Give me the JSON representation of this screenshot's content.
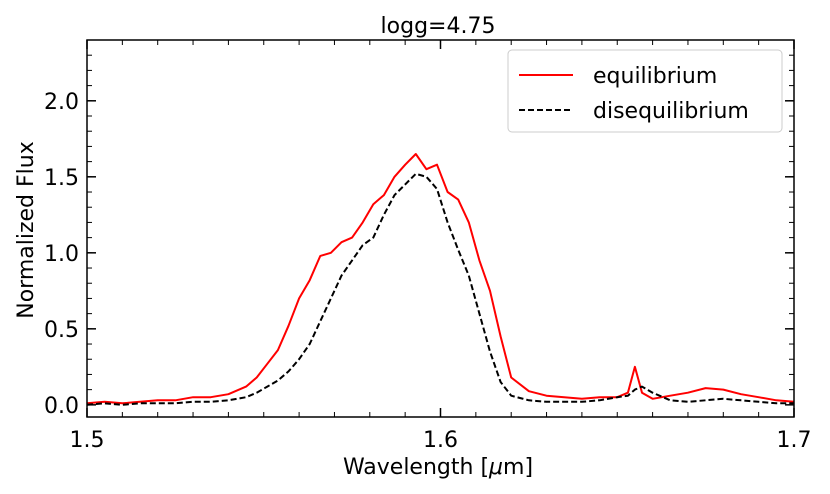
{
  "chart_data": {
    "type": "line",
    "title": "logg=4.75",
    "xlabel_prefix": "Wavelength [",
    "xlabel_mu": "μ",
    "xlabel_suffix": "m]",
    "ylabel": "Normalized Flux",
    "xlim": [
      1.5,
      1.7
    ],
    "ylim": [
      -0.08,
      2.4
    ],
    "x_ticks": [
      1.5,
      1.6,
      1.7
    ],
    "x_tick_labels": [
      "1.5",
      "1.6",
      "1.7"
    ],
    "y_ticks": [
      0.0,
      0.5,
      1.0,
      1.5,
      2.0
    ],
    "y_tick_labels": [
      "0.0",
      "0.5",
      "1.0",
      "1.5",
      "2.0"
    ],
    "legend_position": "top-right",
    "grid": false,
    "series": [
      {
        "name": "equilibrium",
        "color": "#ff0000",
        "dash": "solid",
        "x": [
          1.5,
          1.505,
          1.51,
          1.515,
          1.52,
          1.525,
          1.53,
          1.535,
          1.54,
          1.545,
          1.548,
          1.551,
          1.554,
          1.557,
          1.56,
          1.563,
          1.566,
          1.569,
          1.572,
          1.575,
          1.578,
          1.581,
          1.584,
          1.587,
          1.59,
          1.593,
          1.596,
          1.599,
          1.602,
          1.605,
          1.608,
          1.611,
          1.614,
          1.617,
          1.62,
          1.625,
          1.63,
          1.635,
          1.64,
          1.645,
          1.65,
          1.653,
          1.655,
          1.657,
          1.66,
          1.665,
          1.67,
          1.675,
          1.68,
          1.685,
          1.69,
          1.695,
          1.7
        ],
        "y": [
          0.01,
          0.02,
          0.01,
          0.02,
          0.03,
          0.03,
          0.05,
          0.05,
          0.07,
          0.12,
          0.18,
          0.27,
          0.36,
          0.52,
          0.7,
          0.82,
          0.98,
          1.0,
          1.07,
          1.1,
          1.2,
          1.32,
          1.38,
          1.5,
          1.58,
          1.65,
          1.55,
          1.58,
          1.4,
          1.35,
          1.2,
          0.95,
          0.75,
          0.45,
          0.18,
          0.09,
          0.06,
          0.05,
          0.04,
          0.05,
          0.05,
          0.08,
          0.25,
          0.08,
          0.04,
          0.06,
          0.08,
          0.11,
          0.1,
          0.07,
          0.05,
          0.03,
          0.02
        ]
      },
      {
        "name": "disequilibrium",
        "color": "#000000",
        "dash": "dashed",
        "x": [
          1.5,
          1.505,
          1.51,
          1.515,
          1.52,
          1.525,
          1.53,
          1.535,
          1.54,
          1.545,
          1.548,
          1.551,
          1.554,
          1.557,
          1.56,
          1.563,
          1.566,
          1.569,
          1.572,
          1.575,
          1.578,
          1.581,
          1.584,
          1.587,
          1.59,
          1.593,
          1.596,
          1.599,
          1.602,
          1.605,
          1.608,
          1.611,
          1.614,
          1.617,
          1.62,
          1.625,
          1.63,
          1.635,
          1.64,
          1.645,
          1.65,
          1.653,
          1.655,
          1.657,
          1.66,
          1.665,
          1.67,
          1.675,
          1.68,
          1.685,
          1.69,
          1.695,
          1.7
        ],
        "y": [
          0.0,
          0.01,
          0.0,
          0.01,
          0.01,
          0.01,
          0.02,
          0.02,
          0.03,
          0.05,
          0.08,
          0.12,
          0.16,
          0.22,
          0.3,
          0.4,
          0.55,
          0.7,
          0.85,
          0.95,
          1.05,
          1.1,
          1.25,
          1.38,
          1.45,
          1.52,
          1.5,
          1.42,
          1.2,
          1.02,
          0.85,
          0.6,
          0.35,
          0.15,
          0.06,
          0.03,
          0.02,
          0.02,
          0.02,
          0.03,
          0.05,
          0.06,
          0.1,
          0.12,
          0.08,
          0.03,
          0.02,
          0.03,
          0.04,
          0.03,
          0.02,
          0.01,
          0.01
        ]
      }
    ]
  }
}
